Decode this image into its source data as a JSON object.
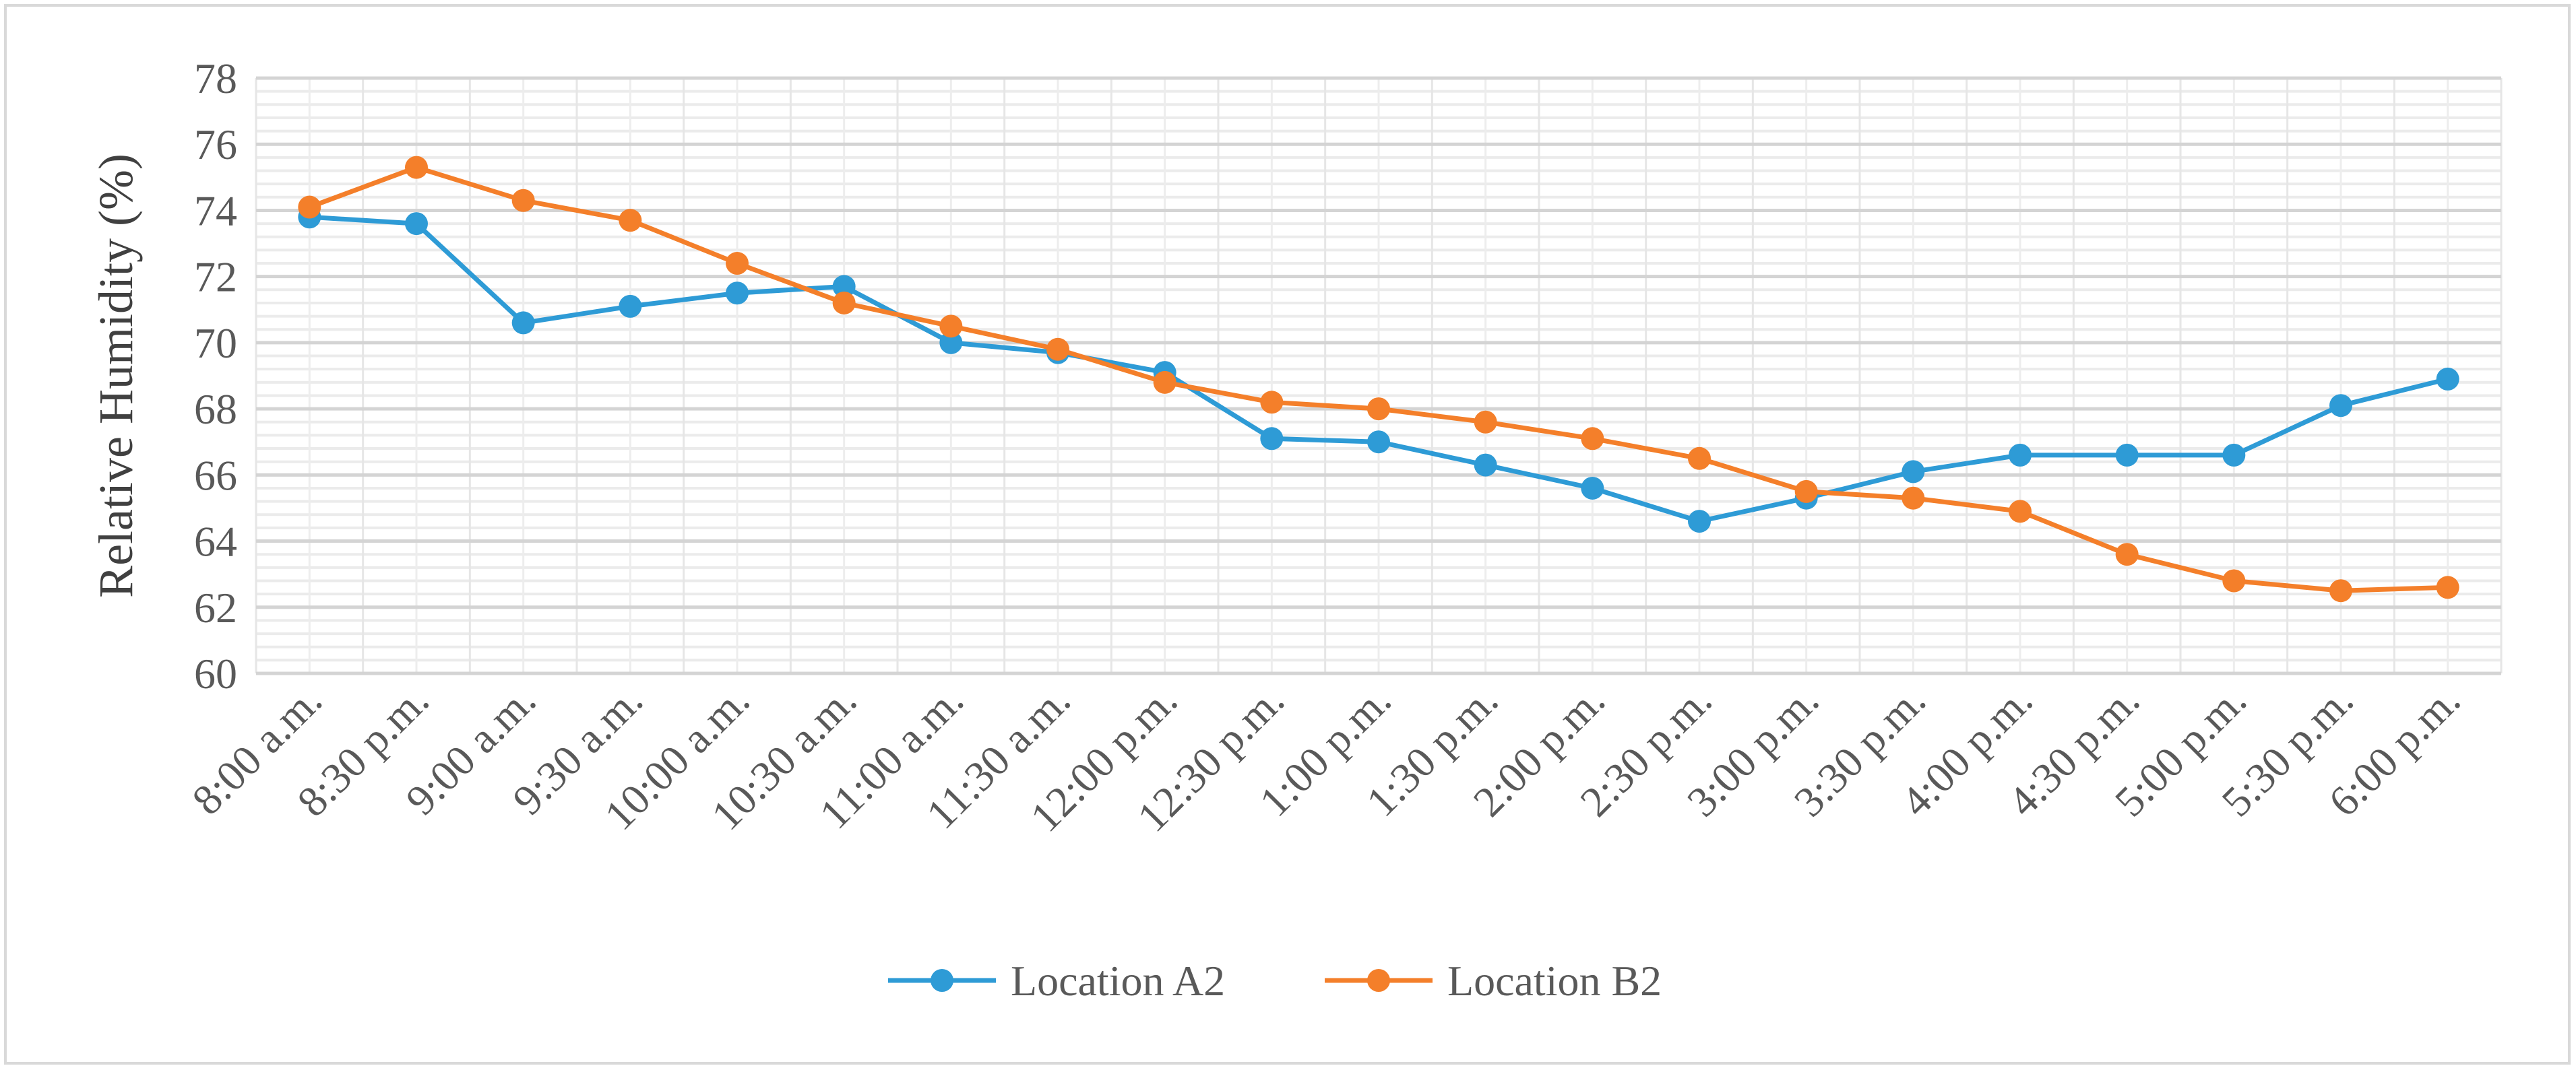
{
  "chart_data": {
    "type": "line",
    "title": "",
    "xlabel": "",
    "ylabel": "Relative Humidity (%)",
    "ylim": [
      60,
      78
    ],
    "y_major_ticks": [
      "60",
      "62",
      "64",
      "66",
      "68",
      "70",
      "72",
      "74",
      "76",
      "78"
    ],
    "y_minor_step": 0.4,
    "grid": true,
    "legend_position": "bottom",
    "categories": [
      "8:00 a.m.",
      "8:30 p.m.",
      "9:00 a.m.",
      "9:30 a.m.",
      "10:00 a.m.",
      "10:30 a.m.",
      "11:00 a.m.",
      "11:30 a.m.",
      "12:00 p.m.",
      "12:30 p.m.",
      "1:00 p.m.",
      "1:30 p.m.",
      "2:00 p.m.",
      "2:30 p.m.",
      "3:00 p.m.",
      "3:30 p.m.",
      "4:00 p.m.",
      "4:30 p.m.",
      "5:00 p.m.",
      "5:30 p.m.",
      "6:00 p.m."
    ],
    "series": [
      {
        "name": "Location A2",
        "color": "#2e9bd6",
        "values": [
          73.8,
          73.6,
          70.6,
          71.1,
          71.5,
          71.7,
          70.0,
          69.7,
          69.1,
          67.1,
          67.0,
          66.3,
          65.6,
          64.6,
          65.3,
          66.1,
          66.6,
          66.6,
          66.6,
          68.1,
          68.9
        ]
      },
      {
        "name": "Location B2",
        "color": "#f47f2a",
        "values": [
          74.1,
          75.3,
          74.3,
          73.7,
          72.4,
          71.2,
          70.5,
          69.8,
          68.8,
          68.2,
          68.0,
          67.6,
          67.1,
          66.5,
          65.5,
          65.3,
          64.9,
          63.6,
          62.8,
          62.5,
          62.6
        ]
      }
    ]
  }
}
